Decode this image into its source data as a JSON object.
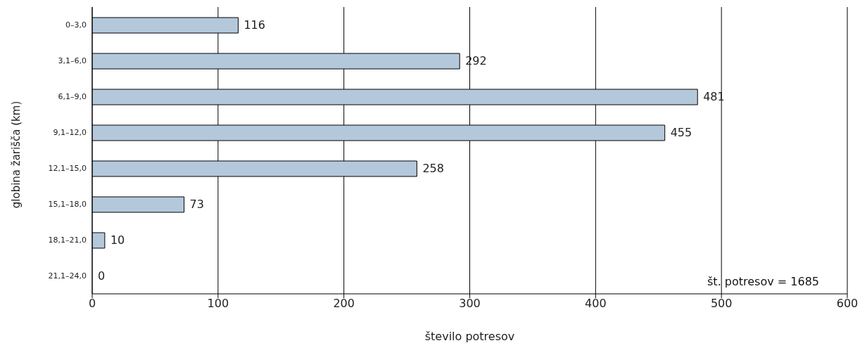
{
  "chart_data": {
    "type": "bar",
    "orientation": "horizontal",
    "xlabel": "število potresov",
    "ylabel": "globina žarišča (km)",
    "categories": [
      "0–3,0",
      "3,1–6,0",
      "6,1–9,0",
      "9,1–12,0",
      "12,1–15,0",
      "15,1–18,0",
      "18,1–21,0",
      "21,1–24,0"
    ],
    "values": [
      116,
      292,
      481,
      455,
      258,
      73,
      10,
      0
    ],
    "color": "#b4c8dc",
    "xlim": [
      0,
      600
    ],
    "xticks": [
      0,
      100,
      200,
      300,
      400,
      500,
      600
    ],
    "grid": "x",
    "data_labels": true,
    "annotations": [
      "št. potresov = 1685"
    ]
  }
}
